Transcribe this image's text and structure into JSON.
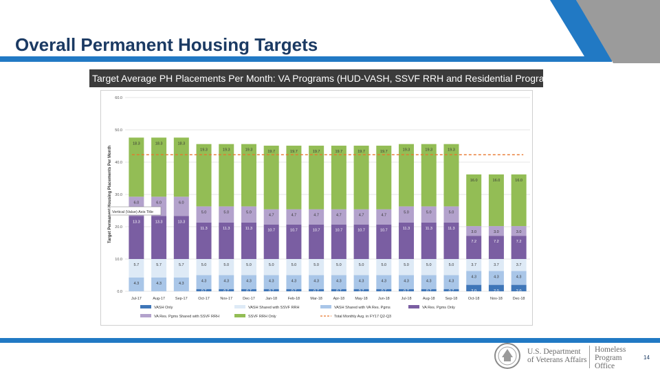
{
  "slide": {
    "title": "Overall Permanent Housing Targets",
    "page_number": "14"
  },
  "footer": {
    "dept_line1": "U.S. Department",
    "dept_line2": "of Veterans Affairs",
    "office_line1": "Homeless",
    "office_line2": "Program",
    "office_line3": "Office"
  },
  "colors": {
    "brand_blue": "#2179c4",
    "navy": "#1b3a63",
    "vash_only": "#3f76b8",
    "vash_shared_res": "#a9c6e8",
    "vash_shared_ssvf": "#deeaf6",
    "va_res_only": "#7a5ea2",
    "va_res_shared_ssvf": "#b3a2cc",
    "ssvf_only": "#93bd55",
    "avg_line": "#e8742a"
  },
  "chart_data": {
    "type": "bar",
    "stacked": true,
    "title": "Target Average PH Placements Per Month: VA Programs (HUD-VASH, SSVF RRH and Residential Programs)",
    "ylabel": "Target Permanent Housing Placements Per Month",
    "ylim": [
      0,
      60
    ],
    "yticks": [
      "0.0",
      "10.0",
      "20.0",
      "30.0",
      "40.0",
      "50.0",
      "60.0"
    ],
    "grid": true,
    "legend_position": "bottom",
    "categories": [
      "Jul-17",
      "Aug-17",
      "Sep-17",
      "Oct-17",
      "Nov-17",
      "Dec-17",
      "Jan-18",
      "Feb-18",
      "Mar-18",
      "Apr-18",
      "May-18",
      "Jun-18",
      "Jul-18",
      "Aug-18",
      "Sep-18",
      "Oct-18",
      "Nov-18",
      "Dec-18"
    ],
    "series": [
      {
        "name": "VASH Only",
        "color": "#3f76b8",
        "values": [
          0.0,
          0.0,
          0.0,
          0.7,
          0.7,
          0.7,
          0.7,
          0.7,
          0.7,
          0.7,
          0.7,
          0.7,
          0.7,
          0.7,
          0.7,
          2.0,
          2.0,
          2.0
        ],
        "labels": [
          "0.0",
          "0.0",
          "0.0",
          "0.7",
          "0.7",
          "0.7",
          "0.7",
          "0.7",
          "0.7",
          "0.7",
          "0.7",
          "0.7",
          "0.7",
          "0.7",
          "0.7",
          "2.0",
          "2.0",
          "2.0"
        ]
      },
      {
        "name": "VASH Shared with VA Res. Pgms",
        "color": "#a9c6e8",
        "values": [
          4.3,
          4.3,
          4.3,
          4.3,
          4.3,
          4.3,
          4.3,
          4.3,
          4.3,
          4.3,
          4.3,
          4.3,
          4.3,
          4.3,
          4.3,
          4.3,
          4.3,
          4.3
        ],
        "labels": [
          "4.3",
          "4.3",
          "4.3",
          "4.3",
          "4.3",
          "4.3",
          "4.3",
          "4.3",
          "4.3",
          "4.3",
          "4.3",
          "4.3",
          "4.3",
          "4.3",
          "4.3",
          "4.3",
          "4.3",
          "4.3"
        ]
      },
      {
        "name": "VASH Shared with SSVF RRH",
        "color": "#deeaf6",
        "values": [
          5.7,
          5.7,
          5.7,
          5.0,
          5.0,
          5.0,
          5.0,
          5.0,
          5.0,
          5.0,
          5.0,
          5.0,
          5.0,
          5.0,
          5.0,
          3.7,
          3.7,
          3.7
        ],
        "labels": [
          "5.7",
          "5.7",
          "5.7",
          "5.0",
          "5.0",
          "5.0",
          "5.0",
          "5.0",
          "5.0",
          "5.0",
          "5.0",
          "5.0",
          "5.0",
          "5.0",
          "5.0",
          "3.7",
          "3.7",
          "3.7"
        ]
      },
      {
        "name": "VA Res. Pgms Only",
        "color": "#7a5ea2",
        "values": [
          13.3,
          13.3,
          13.3,
          11.3,
          11.3,
          11.3,
          10.7,
          10.7,
          10.7,
          10.7,
          10.7,
          10.7,
          11.3,
          11.3,
          11.3,
          7.2,
          7.2,
          7.2
        ],
        "labels": [
          "13.3",
          "13.3",
          "13.3",
          "11.3",
          "11.3",
          "11.3",
          "10.7",
          "10.7",
          "10.7",
          "10.7",
          "10.7",
          "10.7",
          "11.3",
          "11.3",
          "11.3",
          "7.2",
          "7.2",
          "7.2"
        ]
      },
      {
        "name": "VA Res. Pgms Shared with SSVF RRH",
        "color": "#b3a2cc",
        "values": [
          6.0,
          6.0,
          6.0,
          5.0,
          5.0,
          5.0,
          4.7,
          4.7,
          4.7,
          4.7,
          4.7,
          4.7,
          5.0,
          5.0,
          5.0,
          3.0,
          3.0,
          3.0
        ],
        "labels": [
          "6.0",
          "6.0",
          "6.0",
          "5.0",
          "5.0",
          "5.0",
          "4.7",
          "4.7",
          "4.7",
          "4.7",
          "4.7",
          "4.7",
          "5.0",
          "5.0",
          "5.0",
          "3.0",
          "3.0",
          "3.0"
        ]
      },
      {
        "name": "SSVF RRH Only",
        "color": "#93bd55",
        "values": [
          18.3,
          18.3,
          18.3,
          19.3,
          19.3,
          19.3,
          19.7,
          19.7,
          19.7,
          19.7,
          19.7,
          19.7,
          19.3,
          19.3,
          19.3,
          16.0,
          16.0,
          16.0
        ],
        "labels": [
          "18.3",
          "18.3",
          "18.3",
          "19.3",
          "19.3",
          "19.3",
          "19.7",
          "19.7",
          "19.7",
          "19.7",
          "19.7",
          "19.7",
          "19.3",
          "19.3",
          "19.3",
          "16.0",
          "16.0",
          "16.0"
        ]
      }
    ],
    "reference_line": {
      "name": "Total Monthly Avg. in FY17 Q2-Q3",
      "value": 42.3,
      "color": "#e8742a",
      "style": "dashed"
    },
    "tooltip": "Vertical (Value) Axis Title"
  }
}
